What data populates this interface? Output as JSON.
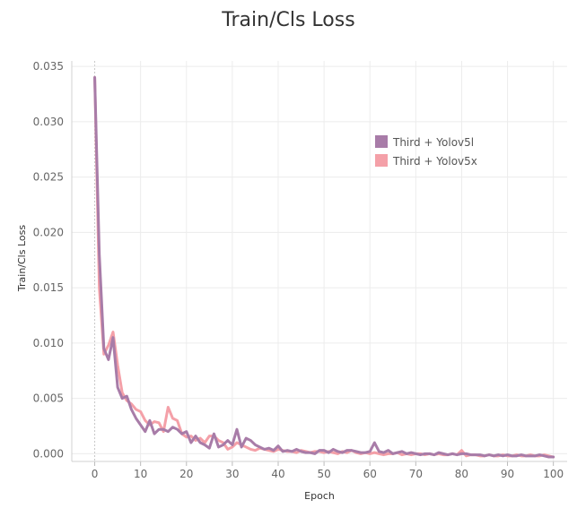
{
  "chart_data": {
    "type": "line",
    "title": "Train/Cls Loss",
    "xlabel": "Epoch",
    "ylabel": "Train/Cls Loss",
    "xlim": [
      -5,
      103
    ],
    "ylim": [
      -0.0007,
      0.0355
    ],
    "xticks": [
      0,
      10,
      20,
      30,
      40,
      50,
      60,
      70,
      80,
      90,
      100
    ],
    "yticks": [
      0.0,
      0.005,
      0.01,
      0.015,
      0.02,
      0.025,
      0.03,
      0.035
    ],
    "ytick_labels": [
      "0.000",
      "0.005",
      "0.010",
      "0.015",
      "0.020",
      "0.025",
      "0.030",
      "0.035"
    ],
    "grid": true,
    "legend_position": "top-right",
    "series": [
      {
        "name": "Third + Yolov5l",
        "color": "#a87ca8",
        "x": [
          0,
          1,
          2,
          3,
          4,
          5,
          6,
          7,
          8,
          9,
          10,
          11,
          12,
          13,
          14,
          15,
          16,
          17,
          18,
          19,
          20,
          21,
          22,
          23,
          24,
          25,
          26,
          27,
          28,
          29,
          30,
          31,
          32,
          33,
          34,
          35,
          36,
          37,
          38,
          39,
          40,
          41,
          42,
          43,
          44,
          45,
          46,
          47,
          48,
          49,
          50,
          51,
          52,
          53,
          54,
          55,
          56,
          57,
          58,
          59,
          60,
          61,
          62,
          63,
          64,
          65,
          66,
          67,
          68,
          69,
          70,
          71,
          72,
          73,
          74,
          75,
          76,
          77,
          78,
          79,
          80,
          81,
          82,
          83,
          84,
          85,
          86,
          87,
          88,
          89,
          90,
          91,
          92,
          93,
          94,
          95,
          96,
          97,
          98,
          99,
          100
        ],
        "y": [
          0.034,
          0.018,
          0.0095,
          0.0085,
          0.0105,
          0.006,
          0.005,
          0.0052,
          0.004,
          0.0032,
          0.0026,
          0.002,
          0.003,
          0.0018,
          0.0022,
          0.0022,
          0.002,
          0.0024,
          0.0022,
          0.0018,
          0.002,
          0.001,
          0.0016,
          0.001,
          0.0008,
          0.0005,
          0.0018,
          0.0006,
          0.0008,
          0.0012,
          0.0008,
          0.0022,
          0.0006,
          0.0014,
          0.0012,
          0.0008,
          0.0006,
          0.0004,
          0.0005,
          0.0003,
          0.0007,
          0.0002,
          0.0003,
          0.0002,
          0.0004,
          0.0002,
          0.0001,
          0.0001,
          0.0,
          0.0003,
          0.0003,
          0.0001,
          0.0004,
          0.0002,
          0.0001,
          0.0003,
          0.0003,
          0.0002,
          0.0001,
          0.0001,
          0.0002,
          0.001,
          0.0002,
          0.0001,
          0.0003,
          0.0,
          0.0001,
          0.0002,
          0.0,
          0.0001,
          0.0,
          -0.0001,
          0.0,
          0.0,
          -0.0001,
          0.0001,
          0.0,
          -0.0001,
          0.0,
          -0.0001,
          0.0,
          0.0,
          -0.0001,
          -0.0001,
          -0.0001,
          -0.0002,
          -0.0001,
          -0.0002,
          -0.0001,
          -0.0002,
          -0.0001,
          -0.0002,
          -0.0002,
          -0.0001,
          -0.0002,
          -0.0002,
          -0.0002,
          -0.0001,
          -0.0002,
          -0.0003,
          -0.0003
        ]
      },
      {
        "name": "Third + Yolov5x",
        "color": "#f4a0a8",
        "x": [
          0,
          1,
          2,
          3,
          4,
          5,
          6,
          7,
          8,
          9,
          10,
          11,
          12,
          13,
          14,
          15,
          16,
          17,
          18,
          19,
          20,
          21,
          22,
          23,
          24,
          25,
          26,
          27,
          28,
          29,
          30,
          31,
          32,
          33,
          34,
          35,
          36,
          37,
          38,
          39,
          40,
          41,
          42,
          43,
          44,
          45,
          46,
          47,
          48,
          49,
          50,
          51,
          52,
          53,
          54,
          55,
          56,
          57,
          58,
          59,
          60,
          61,
          62,
          63,
          64,
          65,
          66,
          67,
          68,
          69,
          70,
          71,
          72,
          73,
          74,
          75,
          76,
          77,
          78,
          79,
          80,
          81,
          82,
          83,
          84,
          85,
          86,
          87,
          88,
          89,
          90,
          91,
          92,
          93,
          94,
          95,
          96,
          97,
          98,
          99,
          100
        ],
        "y": [
          0.034,
          0.015,
          0.009,
          0.0098,
          0.011,
          0.008,
          0.0055,
          0.0048,
          0.0045,
          0.004,
          0.0038,
          0.003,
          0.0026,
          0.0029,
          0.0028,
          0.002,
          0.0042,
          0.0032,
          0.003,
          0.0018,
          0.0015,
          0.0016,
          0.0012,
          0.0014,
          0.001,
          0.0016,
          0.0016,
          0.0012,
          0.001,
          0.0004,
          0.0006,
          0.001,
          0.0008,
          0.0006,
          0.0004,
          0.0003,
          0.0005,
          0.0004,
          0.0003,
          0.0002,
          0.0004,
          0.0003,
          0.0002,
          0.0002,
          0.0001,
          0.0003,
          0.0002,
          0.0001,
          0.0002,
          0.0002,
          0.0001,
          0.0002,
          0.0001,
          0.0,
          0.0002,
          0.0001,
          0.0003,
          0.0001,
          0.0,
          0.0001,
          0.0,
          0.0001,
          0.0,
          -0.0001,
          0.0,
          0.0,
          0.0001,
          -0.0001,
          0.0,
          -0.0001,
          0.0,
          0.0,
          -0.0001,
          0.0,
          -0.0001,
          0.0,
          -0.0001,
          -0.0001,
          0.0,
          -0.0001,
          0.0003,
          -0.0002,
          -0.0001,
          -0.0001,
          -0.0002,
          -0.0002,
          -0.0001,
          -0.0002,
          -0.0002,
          -0.0001,
          -0.0002,
          -0.0002,
          -0.0001,
          -0.0002,
          -0.0002,
          -0.0001,
          -0.0002,
          -0.0002,
          -0.0001,
          -0.0002,
          -0.0003
        ]
      }
    ]
  }
}
